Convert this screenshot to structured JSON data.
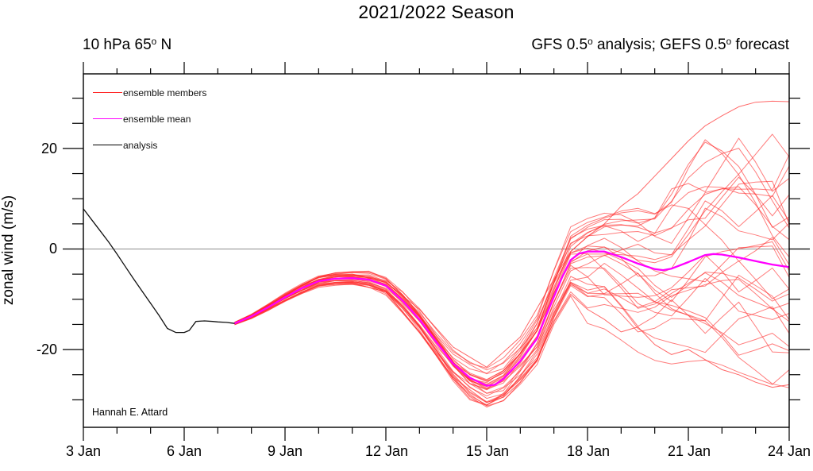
{
  "chart_data": {
    "type": "line",
    "title": "2021/2022 Season",
    "header_left": {
      "pre": "10 hPa 65",
      "sup": "o",
      "post": " N"
    },
    "header_right": {
      "pre": "GFS 0.5",
      "sup1": "o",
      "mid": " analysis; GEFS 0.5",
      "sup2": "o",
      "post": " forecast"
    },
    "ylabel": "zonal wind (m/s)",
    "credit": "Hannah E. Attard",
    "xticks": [
      "3 Jan",
      "6 Jan",
      "9 Jan",
      "12 Jan",
      "15 Jan",
      "18 Jan",
      "21 Jan",
      "24 Jan"
    ],
    "yticks": [
      "20",
      "0",
      "-20"
    ],
    "ytick_values": [
      20,
      0,
      -20
    ],
    "xlim_days": [
      3,
      24
    ],
    "ylim": [
      -35,
      35
    ],
    "x_major_step_days": 3,
    "x_minor_step_days": 1,
    "y_major_step": 20,
    "y_minor_step": 5,
    "grid": false,
    "zero_line": true,
    "legend_position": "top-left-inside",
    "legend": [
      {
        "label": "ensemble members",
        "color": "#ff2222"
      },
      {
        "label": "ensemble mean",
        "color": "#ff00ff"
      },
      {
        "label": "analysis",
        "color": "#000000"
      }
    ],
    "series": {
      "analysis": {
        "name": "analysis",
        "color": "#111111",
        "width": 1.3,
        "days": [
          3.0,
          3.25,
          3.5,
          3.75,
          4.0,
          4.25,
          4.5,
          4.75,
          5.0,
          5.25,
          5.5,
          5.75,
          6.0,
          6.15,
          6.35,
          6.6,
          6.85,
          7.0,
          7.25,
          7.5
        ],
        "values": [
          8.0,
          5.8,
          3.6,
          1.4,
          -1.0,
          -3.5,
          -6.0,
          -8.4,
          -10.8,
          -13.2,
          -15.8,
          -16.6,
          -16.6,
          -16.2,
          -14.4,
          -14.3,
          -14.4,
          -14.5,
          -14.6,
          -14.8
        ]
      },
      "ensemble_mean": {
        "name": "ensemble mean",
        "color": "#ff00ff",
        "width": 2.3,
        "days": [
          7.5,
          8,
          8.5,
          9,
          9.5,
          10,
          10.5,
          11,
          11.5,
          12,
          12.5,
          13,
          13.5,
          14,
          14.5,
          15,
          15.25,
          15.5,
          16,
          16.5,
          16.75,
          17,
          17.25,
          17.5,
          17.75,
          18,
          18.5,
          19,
          19.5,
          20,
          20.25,
          20.5,
          21,
          21.5,
          21.75,
          22,
          22.5,
          23,
          23.5,
          24
        ],
        "values": [
          -14.8,
          -13.4,
          -11.6,
          -9.6,
          -7.8,
          -6.4,
          -5.9,
          -5.8,
          -6.1,
          -7.3,
          -10.3,
          -14.0,
          -18.5,
          -22.8,
          -25.6,
          -27.2,
          -27.0,
          -25.8,
          -22.3,
          -17.8,
          -13.5,
          -9.5,
          -5.5,
          -2.2,
          -0.9,
          -0.5,
          -0.5,
          -1.6,
          -2.9,
          -4.0,
          -4.2,
          -3.9,
          -2.6,
          -1.2,
          -1.0,
          -1.1,
          -1.7,
          -2.4,
          -3.1,
          -3.6
        ]
      },
      "ensemble_members": {
        "name": "ensemble members",
        "color": "#ff2c2c",
        "width": 1,
        "opacity": 0.62,
        "count": 30,
        "start": {
          "day": 7.5,
          "value": -14.8
        },
        "seed": 20220103,
        "knot_days": [
          7.5,
          8.5,
          9.5,
          10.5,
          11.5,
          12.5,
          13.5,
          14.5,
          15.5,
          16.5,
          17.5,
          18.5,
          19.5,
          20.5,
          21.5,
          22.5,
          23.5,
          24.5
        ],
        "envelope": {
          "days": [
            7.5,
            8,
            9,
            10,
            11,
            12,
            13,
            14,
            15,
            16,
            17,
            17.5,
            18,
            18.5,
            19,
            19.5,
            20,
            21,
            22,
            23,
            24
          ],
          "top": [
            0.3,
            0.5,
            0.9,
            1.2,
            1.4,
            2.0,
            2.6,
            3.0,
            3.6,
            4.2,
            5.5,
            6.0,
            6.0,
            7.0,
            9.0,
            10.5,
            12.0,
            20.0,
            24.0,
            28.0,
            31.0
          ],
          "bottom": [
            0.3,
            0.5,
            0.9,
            1.2,
            1.4,
            2.0,
            3.0,
            3.6,
            4.5,
            4.5,
            5.0,
            6.5,
            13.0,
            14.0,
            15.0,
            16.0,
            16.5,
            18.0,
            20.0,
            21.5,
            23.0
          ]
        },
        "explicit_members": [
          {
            "days": [
              7.5,
              8,
              9,
              10,
              11,
              12,
              13,
              14,
              15,
              16,
              17,
              17.5,
              18,
              18.5,
              19,
              19.5,
              20,
              20.5,
              21,
              21.5,
              22,
              22.5,
              23,
              23.5,
              24
            ],
            "values": [
              -14.8,
              -13.3,
              -9.2,
              -5.6,
              -5.0,
              -6.6,
              -12.0,
              -19.5,
              -23.5,
              -17.5,
              -6.0,
              -0.5,
              2.5,
              5.0,
              8.5,
              11.0,
              14.5,
              18.0,
              21.5,
              24.5,
              26.5,
              28.3,
              29.2,
              29.4,
              29.3
            ]
          },
          {
            "days": [
              7.5,
              8,
              9,
              10,
              11,
              12,
              13,
              14,
              15,
              15.5,
              16,
              16.5,
              17,
              17.5,
              18,
              18.5,
              19,
              19.5,
              20,
              20.5,
              21,
              21.5,
              22,
              22.5,
              23,
              23.5,
              24
            ],
            "values": [
              -14.8,
              -13.6,
              -10.2,
              -7.2,
              -6.8,
              -8.5,
              -16.5,
              -25.5,
              -30.5,
              -29.5,
              -26.5,
              -22.0,
              -14.5,
              -9.0,
              -12.0,
              -14.0,
              -16.5,
              -15.5,
              -19.0,
              -21.0,
              -20.0,
              -22.0,
              -24.0,
              -25.0,
              -26.5,
              -27.5,
              -27.0
            ]
          }
        ]
      }
    }
  }
}
